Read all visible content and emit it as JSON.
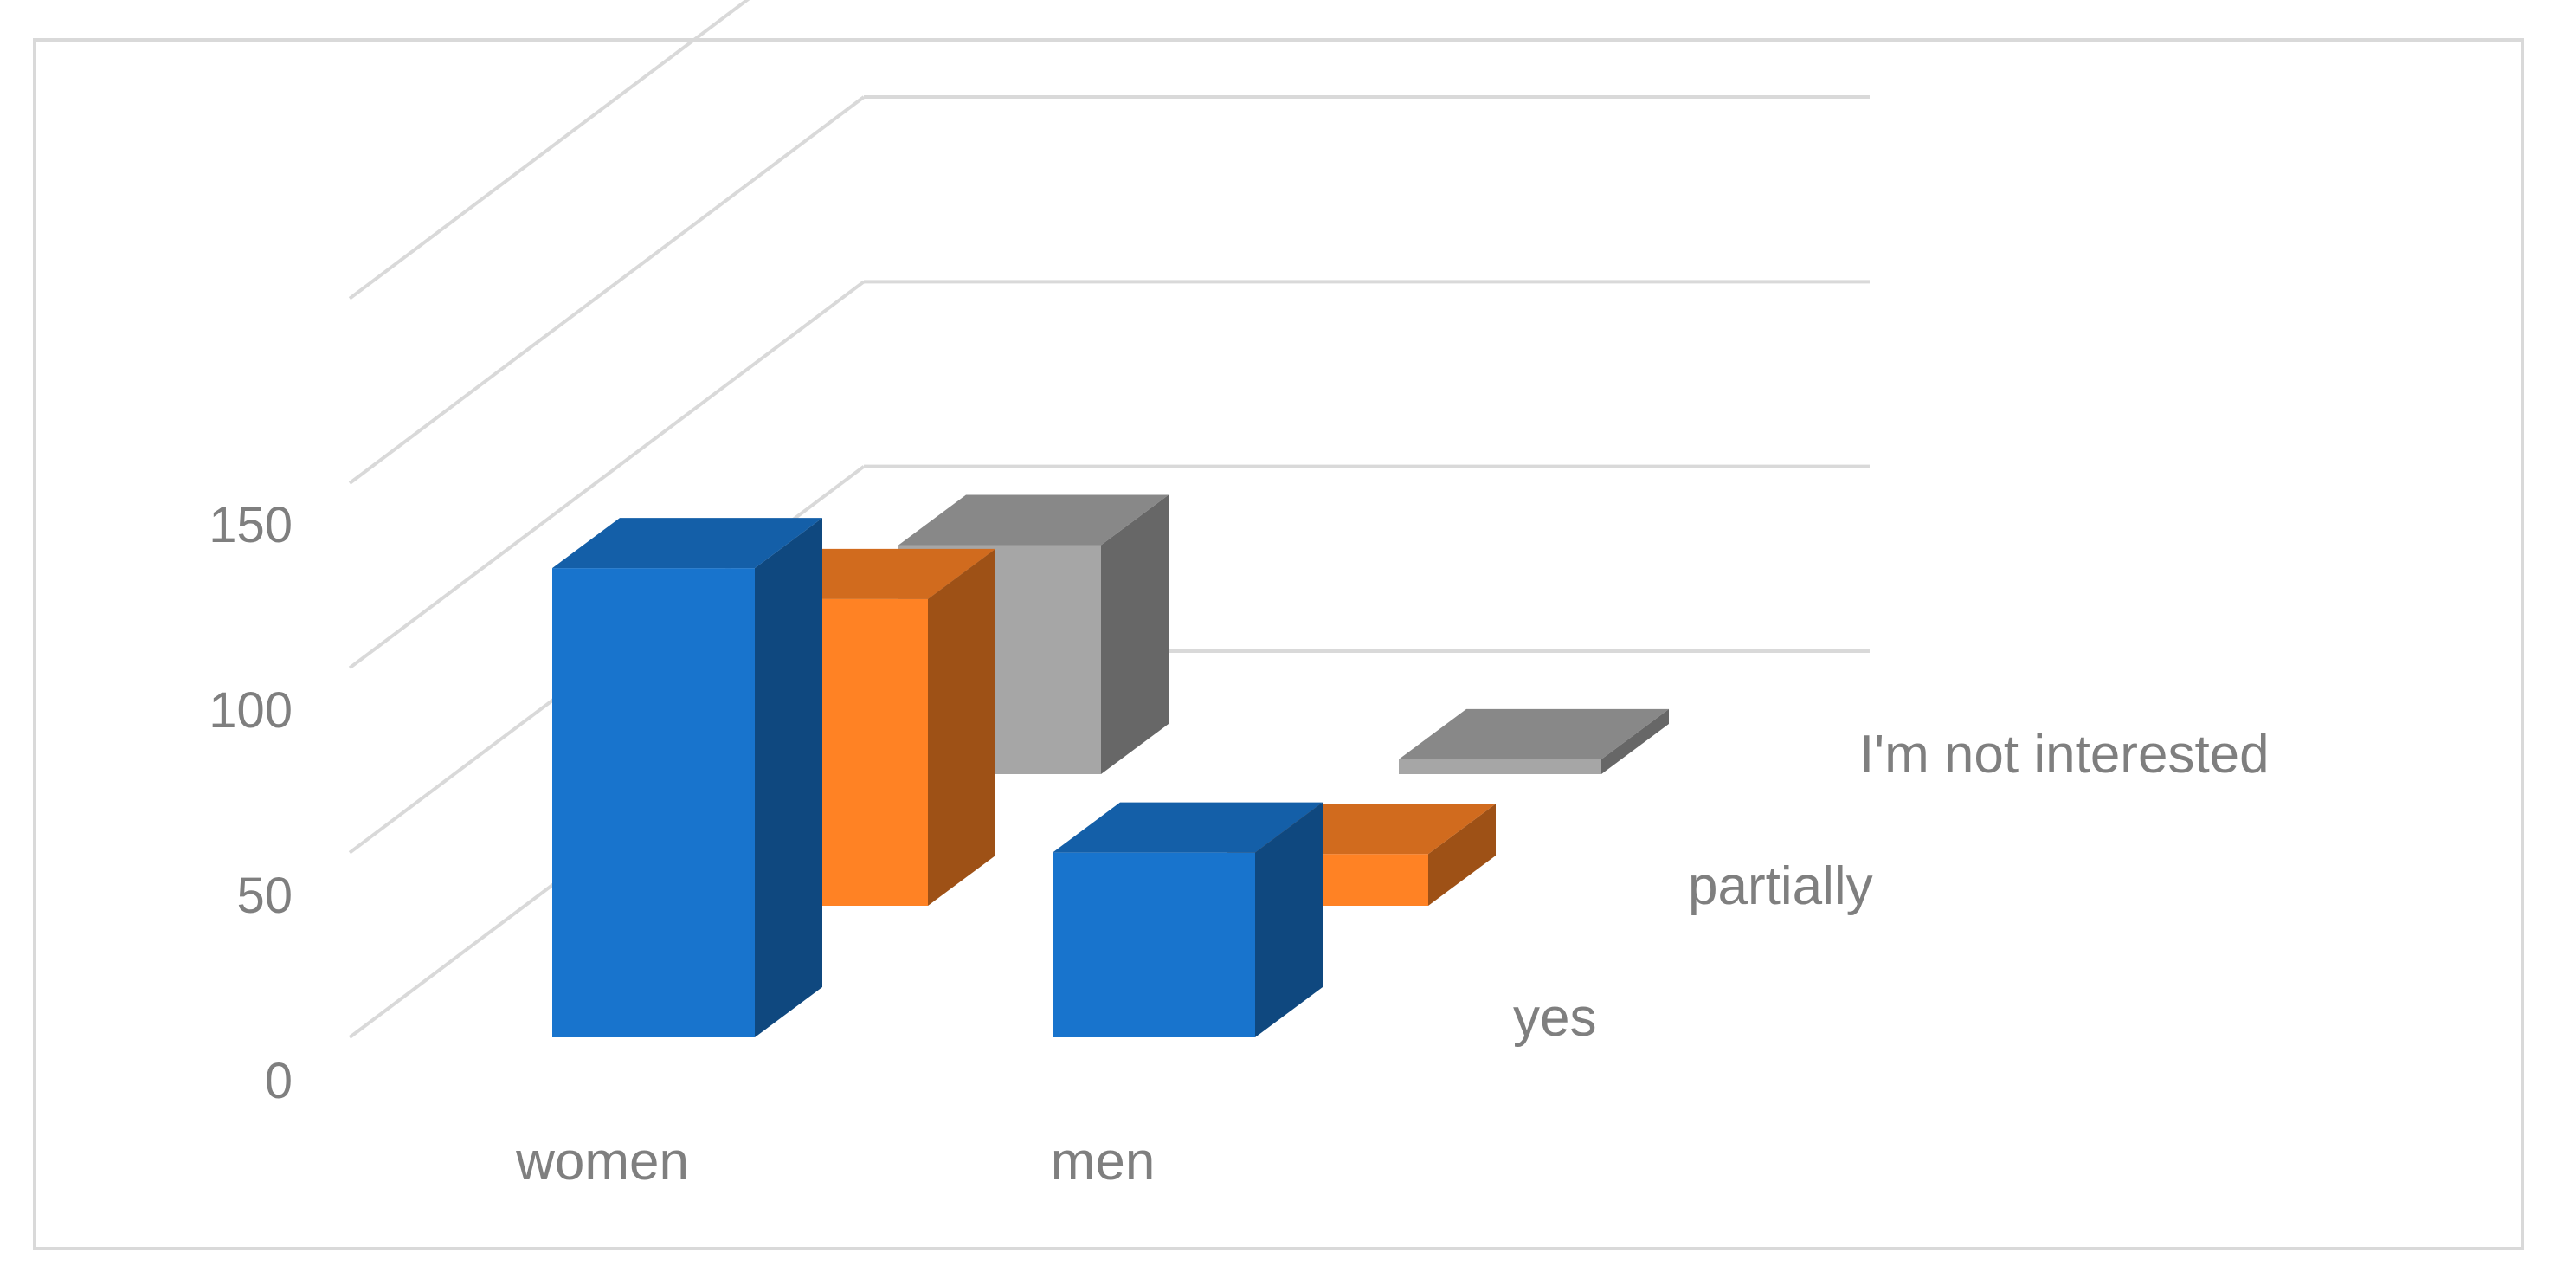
{
  "chart_data": {
    "type": "bar",
    "three_d": true,
    "categories": [
      "women",
      "men"
    ],
    "series": [
      {
        "name": "yes",
        "values": [
          127,
          50
        ]
      },
      {
        "name": "partially",
        "values": [
          83,
          14
        ]
      },
      {
        "name": "I'm not interested",
        "values": [
          62,
          4
        ]
      }
    ],
    "yticks": [
      "0",
      "50",
      "100",
      "150"
    ],
    "ylim": [
      0,
      150
    ],
    "grid": true,
    "colors": {
      "yes": "#1874cd",
      "partially": "#ff8224",
      "I'm not interested": "#a6a6a6",
      "grid": "#d9d9d9",
      "text": "#7f7f7f"
    }
  }
}
